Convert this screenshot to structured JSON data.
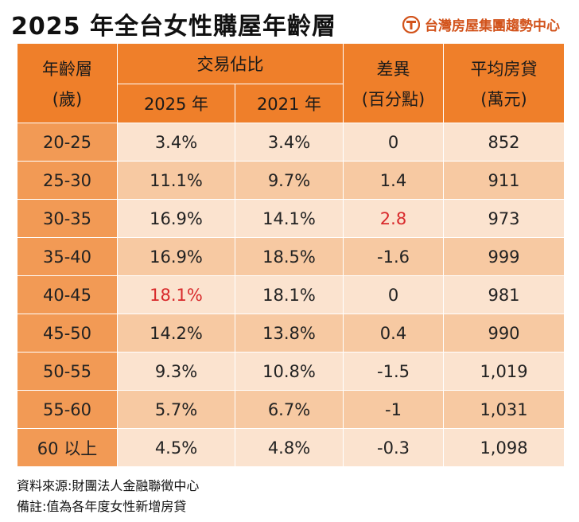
{
  "title": "2025 年全台女性購屋年齡層",
  "brand": {
    "name": "台灣房屋集團趨勢中心",
    "icon": "taiwan-realty-logo-icon",
    "color": "#d2531b"
  },
  "table": {
    "header": {
      "age_line1": "年齡層",
      "age_line2": "(歲)",
      "share_group": "交易佔比",
      "year_2025": "2025 年",
      "year_2021": "2021 年",
      "diff_line1": "差異",
      "diff_line2": "(百分點)",
      "loan_line1": "平均房貸",
      "loan_line2": "(萬元)"
    },
    "rows": [
      {
        "age": "20-25",
        "share_2025": "3.4%",
        "share_2021": "3.4%",
        "diff": "0",
        "loan": "852"
      },
      {
        "age": "25-30",
        "share_2025": "11.1%",
        "share_2021": "9.7%",
        "diff": "1.4",
        "loan": "911"
      },
      {
        "age": "30-35",
        "share_2025": "16.9%",
        "share_2021": "14.1%",
        "diff": "2.8",
        "loan": "973"
      },
      {
        "age": "35-40",
        "share_2025": "16.9%",
        "share_2021": "18.5%",
        "diff": "-1.6",
        "loan": "999"
      },
      {
        "age": "40-45",
        "share_2025": "18.1%",
        "share_2021": "18.1%",
        "diff": "0",
        "loan": "981"
      },
      {
        "age": "45-50",
        "share_2025": "14.2%",
        "share_2021": "13.8%",
        "diff": "0.4",
        "loan": "990"
      },
      {
        "age": "50-55",
        "share_2025": "9.3%",
        "share_2021": "10.8%",
        "diff": "-1.5",
        "loan": "1,019"
      },
      {
        "age": "55-60",
        "share_2025": "5.7%",
        "share_2021": "6.7%",
        "diff": "-1",
        "loan": "1,031"
      },
      {
        "age": "60 以上",
        "share_2025": "4.5%",
        "share_2021": "4.8%",
        "diff": "-0.3",
        "loan": "1,098"
      }
    ],
    "colors": {
      "header": "#ef7f2a",
      "age_column": "#f29a55",
      "row_light": "#fbe3cf",
      "row_dark": "#f7c9a2",
      "highlight_text": "#d8292b"
    }
  },
  "notes": {
    "source": "資料來源:財團法人金融聯徵中心",
    "remark": "備註:值為各年度女性新增房貸"
  }
}
